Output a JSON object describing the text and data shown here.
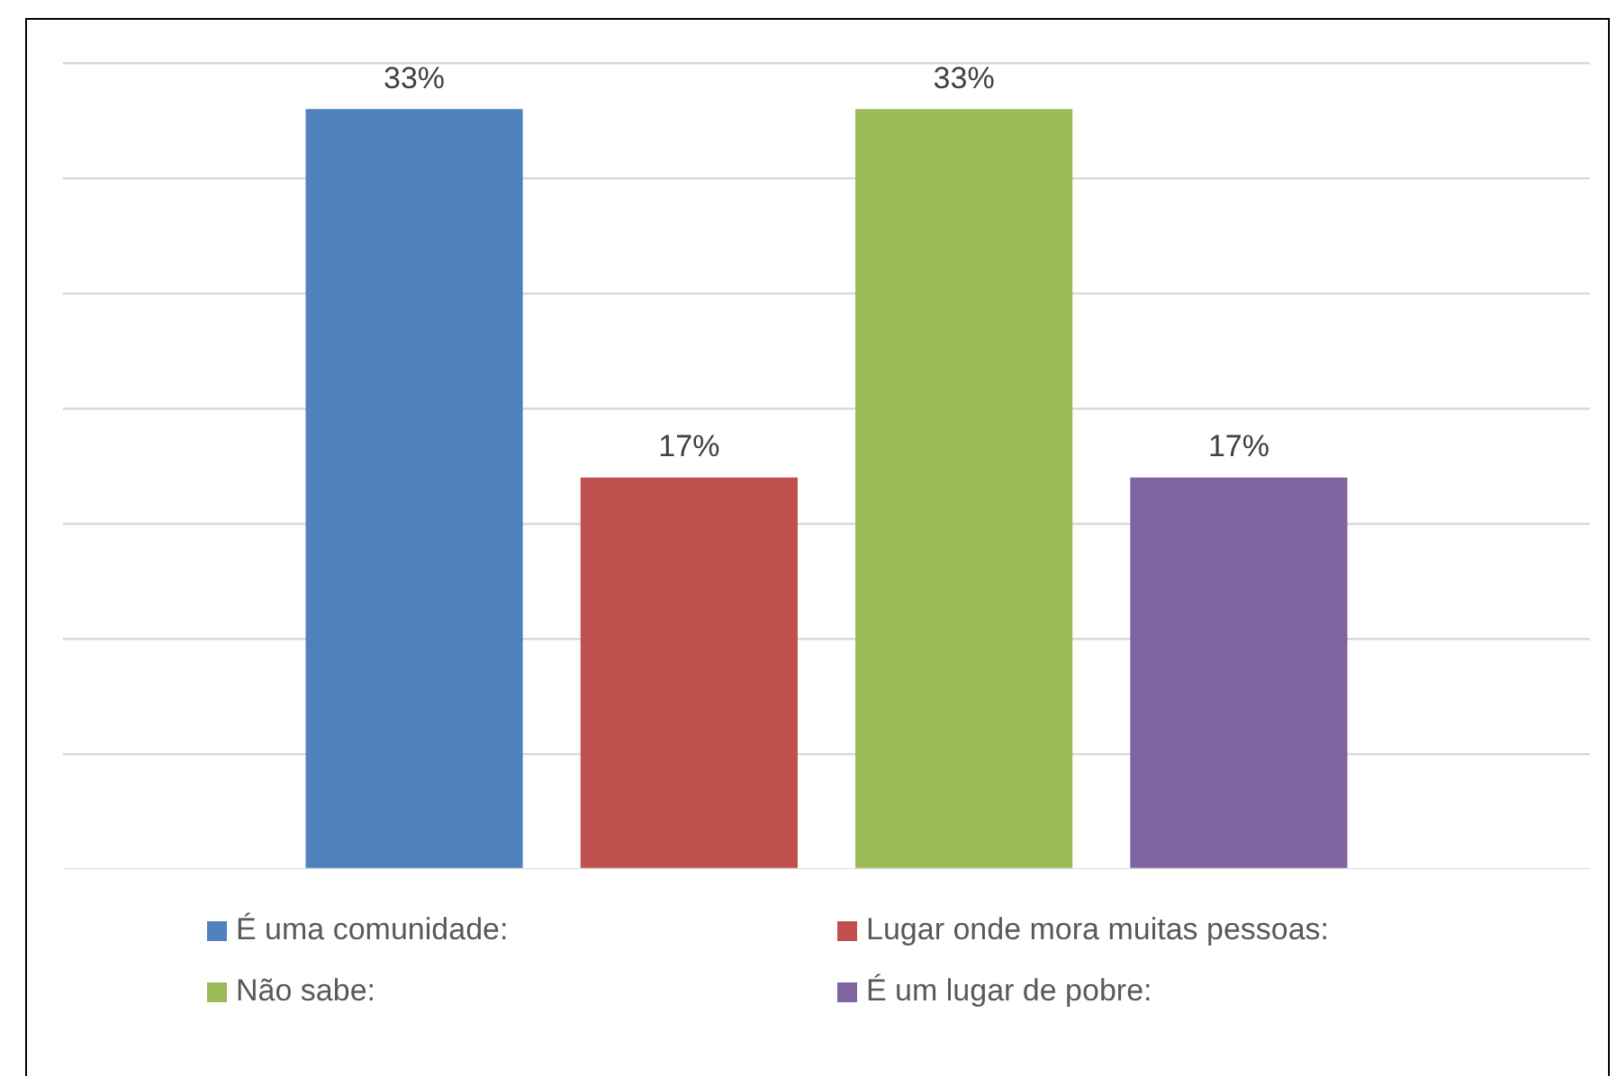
{
  "chart_data": {
    "type": "bar",
    "categories": [
      null
    ],
    "series": [
      {
        "name": "É uma comunidade:",
        "color": "#4f81bd",
        "values": [
          33
        ],
        "value_labels": [
          "33%"
        ]
      },
      {
        "name": "Lugar onde mora muitas pessoas:",
        "color": "#c0504d",
        "values": [
          17
        ],
        "value_labels": [
          "17%"
        ]
      },
      {
        "name": "Não sabe:",
        "color": "#9bbb59",
        "values": [
          33
        ],
        "value_labels": [
          "33%"
        ]
      },
      {
        "name": "É um lugar de pobre:",
        "color": "#8064a2",
        "values": [
          17
        ],
        "value_labels": [
          "17%"
        ]
      }
    ],
    "ylim": [
      0,
      35
    ],
    "yticks": [
      0,
      5,
      10,
      15,
      20,
      25,
      30,
      35
    ],
    "grid": "y",
    "tick_labels": false,
    "legend": "bottom"
  }
}
